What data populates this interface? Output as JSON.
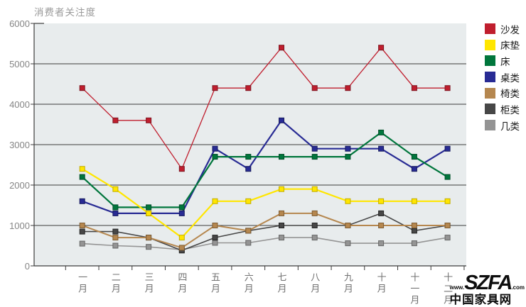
{
  "title": "消费者关注度",
  "watermark": {
    "prefix": "www.",
    "brand": "SZFA",
    "suffix": ".com",
    "site_name": "中国家具网"
  },
  "chart_data": {
    "type": "line",
    "title": "消费者关注度",
    "xlabel": "",
    "ylabel": "",
    "ylim": [
      0,
      6000
    ],
    "y_ticks": [
      0,
      1000,
      2000,
      3000,
      4000,
      5000,
      6000
    ],
    "grid": "horizontal",
    "legend_position": "right",
    "plot_background": "#e8eced",
    "grid_color": "#3c3c3c",
    "categories": [
      "一月",
      "二月",
      "三月",
      "四月",
      "五月",
      "六月",
      "七月",
      "八月",
      "九月",
      "十月",
      "十一月",
      "十二月"
    ],
    "series": [
      {
        "name": "沙发",
        "color": "#c01e2e",
        "marker_border": "#7d1420",
        "stroke_width": 1.3,
        "values": [
          4400,
          3600,
          3600,
          2400,
          4400,
          4400,
          5400,
          4400,
          4400,
          5400,
          4400,
          4400
        ]
      },
      {
        "name": "床垫",
        "color": "#ffe600",
        "marker_border": "#c2ad00",
        "stroke_width": 2.2,
        "values": [
          2400,
          1900,
          1300,
          700,
          1600,
          1600,
          1900,
          1900,
          1600,
          1600,
          1600,
          1600
        ]
      },
      {
        "name": "床",
        "color": "#00763c",
        "marker_border": "#004d27",
        "stroke_width": 2.2,
        "values": [
          2200,
          1450,
          1450,
          1450,
          2700,
          2700,
          2700,
          2700,
          2700,
          3300,
          2700,
          2200
        ]
      },
      {
        "name": "桌类",
        "color": "#282b94",
        "marker_border": "#161a5e",
        "stroke_width": 2.2,
        "values": [
          1600,
          1300,
          1300,
          1300,
          2900,
          2400,
          3600,
          2900,
          2900,
          2900,
          2400,
          2900
        ]
      },
      {
        "name": "椅类",
        "color": "#b5874f",
        "marker_border": "#7e5c33",
        "stroke_width": 2,
        "values": [
          1000,
          700,
          700,
          450,
          1000,
          870,
          1300,
          1300,
          1000,
          1000,
          1000,
          1000
        ]
      },
      {
        "name": "柜类",
        "color": "#474747",
        "marker_border": "#242424",
        "stroke_width": 1.6,
        "values": [
          850,
          850,
          700,
          380,
          700,
          870,
          1000,
          1000,
          1000,
          1300,
          870,
          1000
        ]
      },
      {
        "name": "几类",
        "color": "#949494",
        "marker_border": "#666666",
        "stroke_width": 1.6,
        "values": [
          550,
          500,
          470,
          400,
          570,
          570,
          700,
          700,
          560,
          560,
          560,
          700
        ]
      }
    ]
  }
}
